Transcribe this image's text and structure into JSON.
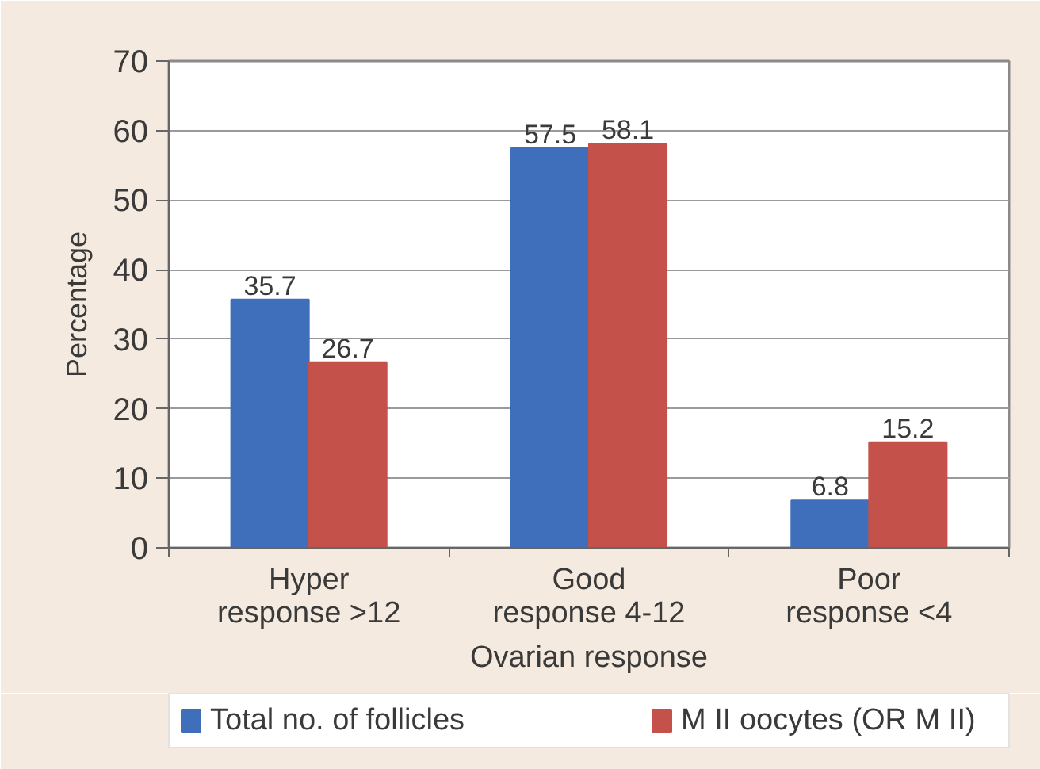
{
  "chart_data": {
    "type": "bar",
    "categories": [
      "Hyper\nresponse >12",
      "Good\nresponse 4-12",
      "Poor\nresponse <4"
    ],
    "series": [
      {
        "name": "Total no. of follicles",
        "color": "#3f6fba",
        "values": [
          35.7,
          57.5,
          6.8
        ]
      },
      {
        "name": "M II oocytes (OR M II)",
        "color": "#c4524a",
        "values": [
          26.7,
          58.1,
          15.2
        ]
      }
    ],
    "xlabel": "Ovarian response",
    "ylabel": "Percentage",
    "ylim": [
      0,
      70
    ],
    "yticks": [
      0,
      10,
      20,
      30,
      40,
      50,
      60,
      70
    ],
    "grid": "y",
    "legend": "bottom",
    "data_labels": true
  }
}
